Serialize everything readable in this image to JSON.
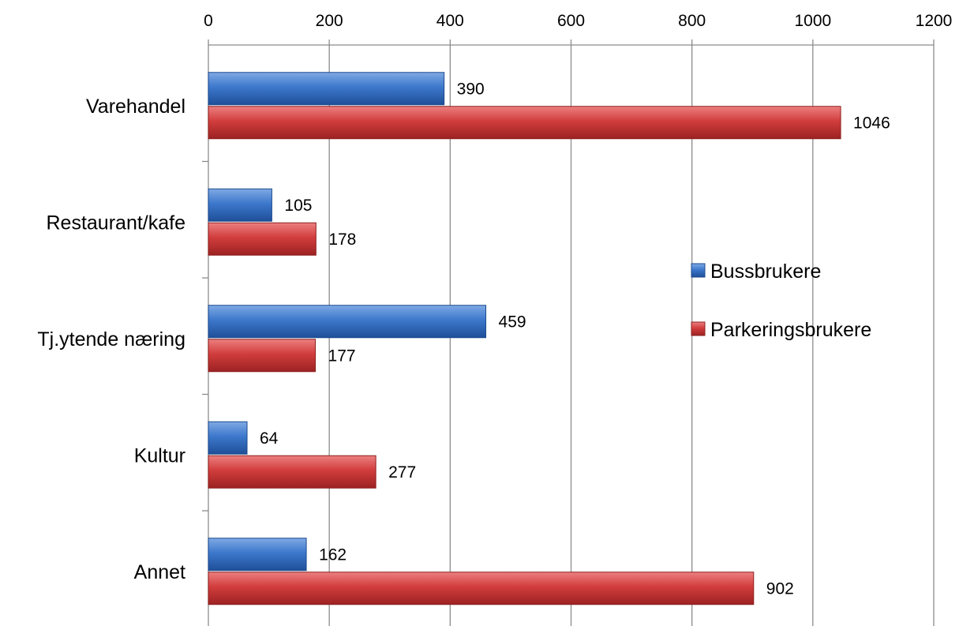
{
  "chart_data": {
    "type": "bar",
    "orientation": "horizontal",
    "title": "",
    "xlabel": "",
    "ylabel": "",
    "categories": [
      "Varehandel",
      "Restaurant/kafe",
      "Tj.ytende næring",
      "Kultur",
      "Annet"
    ],
    "series": [
      {
        "name": "Bussbrukere",
        "values": [
          390,
          105,
          459,
          64,
          162
        ],
        "color": "#3a74c4"
      },
      {
        "name": "Parkeringsbrukere",
        "values": [
          1046,
          178,
          177,
          277,
          902
        ],
        "color": "#cc3a3a"
      }
    ],
    "xlim": [
      0,
      1200
    ],
    "xticks": [
      0,
      200,
      400,
      600,
      800,
      1000,
      1200
    ],
    "x_axis_position": "top",
    "grid": true,
    "legend_position": "right",
    "data_labels": true
  }
}
